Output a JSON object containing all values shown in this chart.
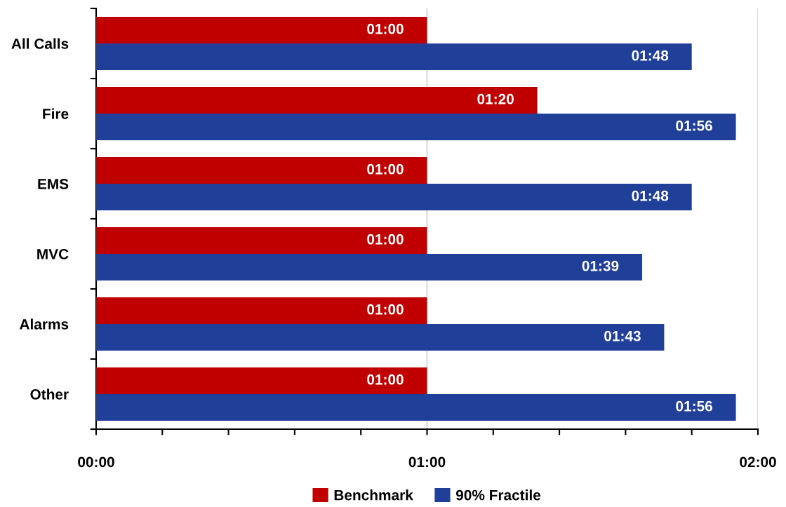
{
  "chart_data": {
    "type": "bar",
    "orientation": "horizontal",
    "categories": [
      "All Calls",
      "Fire",
      "EMS",
      "MVC",
      "Alarms",
      "Other"
    ],
    "series": [
      {
        "name": "Benchmark",
        "color": "#c00000",
        "values": [
          60,
          80,
          60,
          60,
          60,
          60
        ],
        "value_labels": [
          "01:00",
          "01:20",
          "01:00",
          "01:00",
          "01:00",
          "01:00"
        ]
      },
      {
        "name": "90% Fractile",
        "color": "#1f3f99",
        "values": [
          108,
          116,
          108,
          99,
          103,
          116
        ],
        "value_labels": [
          "01:48",
          "01:56",
          "01:48",
          "01:39",
          "01:43",
          "01:56"
        ]
      }
    ],
    "xlim": [
      0,
      120
    ],
    "xticks": [
      {
        "value": 0,
        "label": "00:00"
      },
      {
        "value": 12,
        "label": null
      },
      {
        "value": 24,
        "label": null
      },
      {
        "value": 36,
        "label": null
      },
      {
        "value": 48,
        "label": null
      },
      {
        "value": 60,
        "label": "01:00"
      },
      {
        "value": 72,
        "label": null
      },
      {
        "value": 84,
        "label": null
      },
      {
        "value": 96,
        "label": null
      },
      {
        "value": 108,
        "label": null
      },
      {
        "value": 120,
        "label": "02:00"
      }
    ],
    "grid": "x",
    "legend": "bottom"
  }
}
